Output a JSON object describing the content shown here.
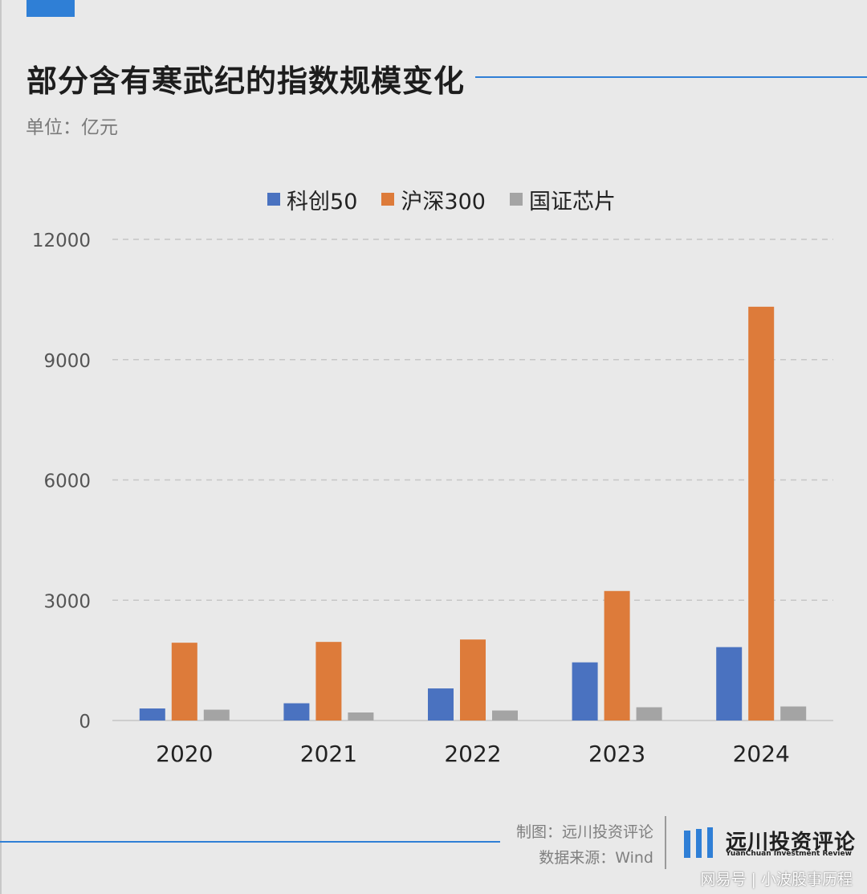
{
  "header": {
    "title": "部分含有寒武纪的指数规模变化",
    "unit": "单位：亿元"
  },
  "colors": {
    "accent": "#2f7fd6",
    "series": [
      "#4a72c0",
      "#dd7b3a",
      "#a4a4a4"
    ]
  },
  "chart_data": {
    "type": "bar",
    "categories": [
      "2020",
      "2021",
      "2022",
      "2023",
      "2024"
    ],
    "series": [
      {
        "name": "科创50",
        "values": [
          300,
          430,
          800,
          1450,
          1830
        ]
      },
      {
        "name": "沪深300",
        "values": [
          1940,
          1960,
          2020,
          3230,
          10320
        ]
      },
      {
        "name": "国证芯片",
        "values": [
          270,
          200,
          250,
          330,
          350
        ]
      }
    ],
    "ylim": [
      0,
      12000
    ],
    "yticks": [
      "0",
      "3000",
      "6000",
      "9000",
      "12000"
    ],
    "grid": true,
    "legend_position": "top-center"
  },
  "footer": {
    "credit_line1": "制图：远川投资评论",
    "credit_line2": "数据来源：Wind",
    "logo_name": "远川投资评论",
    "logo_subtitle": "YuanChuan Investment Review",
    "watermark": "网易号 | 小波股事历程"
  }
}
